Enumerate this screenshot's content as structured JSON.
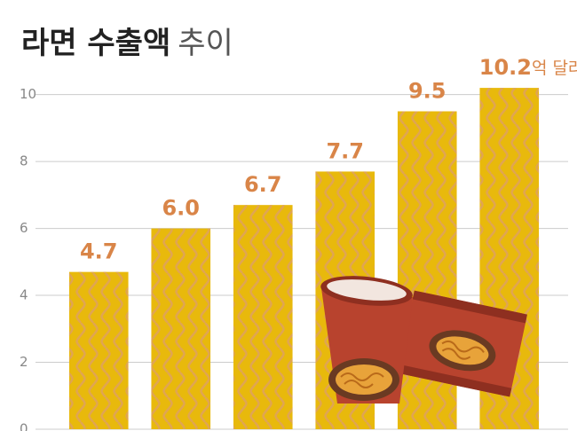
{
  "chart_data": {
    "type": "bar",
    "title": "라면 수출액",
    "title_suffix": "추이",
    "categories": [
      null,
      null,
      null,
      null,
      null,
      null
    ],
    "values": [
      4.7,
      6.0,
      6.7,
      7.7,
      9.5,
      10.2
    ],
    "value_labels": [
      "4.7",
      "6.0",
      "6.7",
      "7.7",
      "9.5",
      "10.2"
    ],
    "unit": "억 달러",
    "color": "#e8b90c",
    "ylim": [
      0,
      10.6
    ],
    "yticks": [
      0,
      2,
      4,
      6,
      8,
      10
    ],
    "grid": true
  }
}
